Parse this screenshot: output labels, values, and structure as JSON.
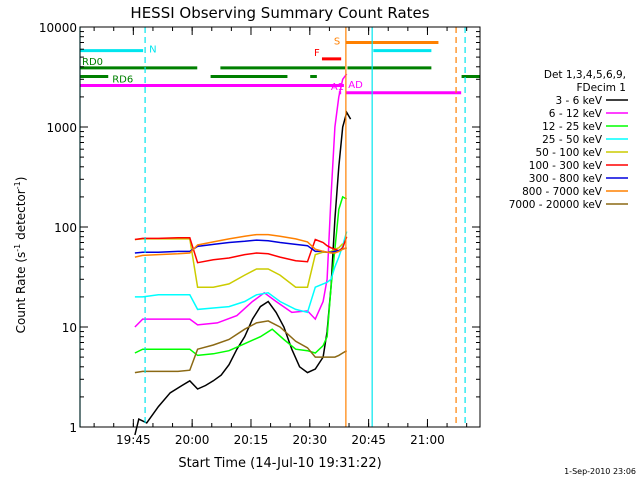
{
  "chart_data": {
    "type": "line",
    "title": "HESSI Observing Summary Count Rates",
    "xlabel": "Start Time (14-Jul-10 19:31:22)",
    "ylabel": "Count Rate (s⁻¹ detector⁻¹)",
    "ylabel_parts": {
      "a": "Count Rate (s",
      "b": "-1",
      "c": " detector",
      "d": "-1",
      "e": ")"
    },
    "footer": "1-Sep-2010 23:06",
    "x_unit": "minutes since 19:31:22",
    "xlim": [
      0,
      102
    ],
    "ylim": [
      1,
      10000
    ],
    "y_scale": "log",
    "grid": false,
    "legend_position": "right",
    "legend_header": [
      "Det 1,3,4,5,6,9,",
      "FDecim 1"
    ],
    "x_ticks": [
      {
        "x": 13.6,
        "label": "19:45"
      },
      {
        "x": 28.6,
        "label": "20:00"
      },
      {
        "x": 43.6,
        "label": "20:15"
      },
      {
        "x": 58.6,
        "label": "20:30"
      },
      {
        "x": 73.6,
        "label": "20:45"
      },
      {
        "x": 88.6,
        "label": "21:00"
      }
    ],
    "y_ticks": [
      {
        "y": 1,
        "label": "1"
      },
      {
        "y": 10,
        "label": "10"
      },
      {
        "y": 100,
        "label": "100"
      },
      {
        "y": 1000,
        "label": "1000"
      },
      {
        "y": 10000,
        "label": "10000"
      }
    ],
    "series": [
      {
        "name": "3 - 6 keV",
        "color": "#000000",
        "values": [
          [
            14,
            0.7
          ],
          [
            15,
            1.2
          ],
          [
            17,
            1.1
          ],
          [
            20,
            1.6
          ],
          [
            23,
            2.2
          ],
          [
            26,
            2.6
          ],
          [
            28,
            2.9
          ],
          [
            30,
            2.4
          ],
          [
            32,
            2.6
          ],
          [
            34,
            2.9
          ],
          [
            36,
            3.3
          ],
          [
            38,
            4.2
          ],
          [
            40,
            6
          ],
          [
            42,
            8
          ],
          [
            44,
            12
          ],
          [
            46,
            16
          ],
          [
            48,
            18
          ],
          [
            50,
            14
          ],
          [
            52,
            10
          ],
          [
            54,
            6
          ],
          [
            56,
            4
          ],
          [
            58,
            3.5
          ],
          [
            60,
            3.8
          ],
          [
            62,
            5
          ],
          [
            63,
            9
          ],
          [
            64,
            25
          ],
          [
            65,
            120
          ],
          [
            66,
            400
          ],
          [
            67,
            1000
          ],
          [
            68,
            1400
          ],
          [
            69,
            1200
          ]
        ]
      },
      {
        "name": "6 - 12 keV",
        "color": "#ff00ff",
        "values": [
          [
            14,
            10
          ],
          [
            16,
            12
          ],
          [
            20,
            12
          ],
          [
            25,
            12
          ],
          [
            28,
            12
          ],
          [
            30,
            10.5
          ],
          [
            35,
            11
          ],
          [
            40,
            13
          ],
          [
            44,
            18
          ],
          [
            47,
            22
          ],
          [
            50,
            18
          ],
          [
            54,
            14
          ],
          [
            58,
            14.5
          ],
          [
            60,
            12
          ],
          [
            62,
            18
          ],
          [
            63,
            30
          ],
          [
            64,
            200
          ],
          [
            65,
            1000
          ],
          [
            66,
            2000
          ],
          [
            67,
            3000
          ],
          [
            68,
            3400
          ]
        ]
      },
      {
        "name": "12 - 25 keV",
        "color": "#00ff00",
        "values": [
          [
            14,
            5.5
          ],
          [
            16,
            6
          ],
          [
            20,
            6
          ],
          [
            25,
            6
          ],
          [
            28,
            6
          ],
          [
            30,
            5.2
          ],
          [
            34,
            5.4
          ],
          [
            38,
            5.8
          ],
          [
            42,
            6.8
          ],
          [
            46,
            8
          ],
          [
            49,
            9.5
          ],
          [
            52,
            7.5
          ],
          [
            55,
            6
          ],
          [
            58,
            5.8
          ],
          [
            60,
            5.5
          ],
          [
            62,
            6.5
          ],
          [
            63,
            8
          ],
          [
            64,
            25
          ],
          [
            65,
            60
          ],
          [
            66,
            150
          ],
          [
            67,
            200
          ],
          [
            68,
            190
          ]
        ]
      },
      {
        "name": "25 - 50 keV",
        "color": "#00ffff",
        "values": [
          [
            14,
            20
          ],
          [
            16,
            20
          ],
          [
            20,
            21
          ],
          [
            25,
            21
          ],
          [
            28,
            21
          ],
          [
            30,
            15
          ],
          [
            34,
            15.5
          ],
          [
            38,
            16
          ],
          [
            42,
            18
          ],
          [
            45,
            21
          ],
          [
            48,
            22
          ],
          [
            51,
            18
          ],
          [
            55,
            15
          ],
          [
            58,
            14
          ],
          [
            60,
            25
          ],
          [
            62,
            27
          ],
          [
            63,
            28
          ],
          [
            64,
            30
          ],
          [
            65,
            40
          ],
          [
            66,
            50
          ],
          [
            67,
            65
          ],
          [
            68,
            90
          ]
        ]
      },
      {
        "name": "50 - 100 keV",
        "color": "#cccc00",
        "values": [
          [
            14,
            75
          ],
          [
            16,
            76
          ],
          [
            20,
            76
          ],
          [
            25,
            76
          ],
          [
            28,
            76
          ],
          [
            30,
            25
          ],
          [
            34,
            25
          ],
          [
            38,
            27
          ],
          [
            42,
            33
          ],
          [
            45,
            38
          ],
          [
            48,
            38
          ],
          [
            51,
            33
          ],
          [
            55,
            25
          ],
          [
            58,
            25
          ],
          [
            60,
            53
          ],
          [
            62,
            56
          ],
          [
            63,
            56
          ],
          [
            64,
            57
          ],
          [
            65,
            60
          ],
          [
            66,
            62
          ],
          [
            67,
            68
          ]
        ]
      },
      {
        "name": "100 - 300 keV",
        "color": "#ff0000",
        "values": [
          [
            14,
            75
          ],
          [
            16,
            77
          ],
          [
            20,
            77
          ],
          [
            25,
            78
          ],
          [
            28,
            78
          ],
          [
            30,
            44
          ],
          [
            34,
            47
          ],
          [
            38,
            49
          ],
          [
            42,
            53
          ],
          [
            45,
            55
          ],
          [
            48,
            54
          ],
          [
            51,
            50
          ],
          [
            55,
            46
          ],
          [
            58,
            45
          ],
          [
            60,
            75
          ],
          [
            62,
            70
          ],
          [
            63,
            65
          ],
          [
            64,
            62
          ],
          [
            65,
            60
          ],
          [
            66,
            58
          ],
          [
            67,
            62
          ],
          [
            68,
            80
          ]
        ]
      },
      {
        "name": "300 - 800 keV",
        "color": "#0000dd",
        "values": [
          [
            14,
            55
          ],
          [
            16,
            56
          ],
          [
            20,
            56
          ],
          [
            25,
            57
          ],
          [
            28,
            57
          ],
          [
            30,
            64
          ],
          [
            34,
            67
          ],
          [
            38,
            70
          ],
          [
            42,
            72
          ],
          [
            45,
            74
          ],
          [
            48,
            73
          ],
          [
            51,
            70
          ],
          [
            55,
            67
          ],
          [
            58,
            65
          ],
          [
            60,
            57
          ],
          [
            62,
            57
          ],
          [
            63,
            56
          ],
          [
            64,
            56
          ],
          [
            65,
            57
          ],
          [
            66,
            58
          ],
          [
            67,
            60
          ],
          [
            68,
            62
          ]
        ]
      },
      {
        "name": "800 - 7000 keV",
        "color": "#ff8000",
        "values": [
          [
            14,
            50
          ],
          [
            16,
            52
          ],
          [
            20,
            53
          ],
          [
            25,
            54
          ],
          [
            28,
            55
          ],
          [
            30,
            66
          ],
          [
            34,
            71
          ],
          [
            38,
            76
          ],
          [
            42,
            81
          ],
          [
            45,
            84
          ],
          [
            48,
            84
          ],
          [
            51,
            81
          ],
          [
            55,
            76
          ],
          [
            58,
            71
          ],
          [
            60,
            60
          ],
          [
            62,
            57
          ],
          [
            63,
            56
          ],
          [
            64,
            55
          ],
          [
            65,
            55
          ],
          [
            66,
            57
          ],
          [
            67,
            60
          ],
          [
            68,
            62
          ]
        ]
      },
      {
        "name": "7000 - 20000 keV",
        "color": "#8b6914",
        "values": [
          [
            14,
            3.5
          ],
          [
            16,
            3.6
          ],
          [
            20,
            3.6
          ],
          [
            25,
            3.6
          ],
          [
            28,
            3.7
          ],
          [
            30,
            6
          ],
          [
            34,
            6.6
          ],
          [
            38,
            7.5
          ],
          [
            42,
            9.5
          ],
          [
            45,
            11
          ],
          [
            48,
            11.5
          ],
          [
            51,
            10
          ],
          [
            55,
            7.2
          ],
          [
            58,
            6.2
          ],
          [
            60,
            5
          ],
          [
            62,
            5
          ],
          [
            63,
            5
          ],
          [
            64,
            5
          ],
          [
            65,
            5
          ],
          [
            66,
            5.2
          ],
          [
            67,
            5.5
          ],
          [
            68,
            5.8
          ]
        ]
      }
    ],
    "segments": [
      {
        "label": "N",
        "color": "#00e5ee",
        "x": [
          0,
          16.1
        ],
        "y": 5800
      },
      {
        "label": "",
        "color": "#00e5ee",
        "x": [
          74.8,
          89.6
        ],
        "y": 5800
      },
      {
        "label": "RD0",
        "color": "#008000",
        "x": [
          0,
          29.9
        ],
        "y": 3900
      },
      {
        "label": "",
        "color": "#008000",
        "x": [
          35.8,
          67.6
        ],
        "y": 3900
      },
      {
        "label": "",
        "color": "#008000",
        "x": [
          68.2,
          89.6
        ],
        "y": 3900
      },
      {
        "label": "RD6",
        "color": "#008000",
        "x": [
          0,
          7.2
        ],
        "y": 3200
      },
      {
        "label": "",
        "color": "#008000",
        "x": [
          33.3,
          52.9
        ],
        "y": 3200
      },
      {
        "label": "",
        "color": "#008000",
        "x": [
          58.7,
          60.4
        ],
        "y": 3200
      },
      {
        "label": "",
        "color": "#008000",
        "x": [
          97.3,
          102
        ],
        "y": 3200
      },
      {
        "label": "S",
        "color": "#ff8000",
        "x": [
          67.8,
          91.4
        ],
        "y": 7000
      },
      {
        "label": "F",
        "color": "#ff0000",
        "x": [
          61.7,
          66.6
        ],
        "y": 4800
      },
      {
        "label": "",
        "color": "#ff00ff",
        "x": [
          0,
          67.3
        ],
        "y": 2600
      },
      {
        "label": "AD",
        "color": "#ff00ff",
        "x": [
          67.9,
          97.2
        ],
        "y": 2200
      },
      {
        "label": "A1",
        "color": "#ff00ff",
        "x": [
          66,
          66.6
        ],
        "y": 2200
      }
    ],
    "vlines": [
      {
        "x": 0,
        "color": "#00e5ee",
        "style": "solid"
      },
      {
        "x": 16.6,
        "color": "#00e5ee",
        "style": "dashed"
      },
      {
        "x": 67.8,
        "color": "#ff8000",
        "style": "solid"
      },
      {
        "x": 74.5,
        "color": "#00e5ee",
        "style": "solid"
      },
      {
        "x": 95.9,
        "color": "#ff8000",
        "style": "dashed"
      },
      {
        "x": 98.2,
        "color": "#00e5ee",
        "style": "dashed"
      }
    ]
  }
}
